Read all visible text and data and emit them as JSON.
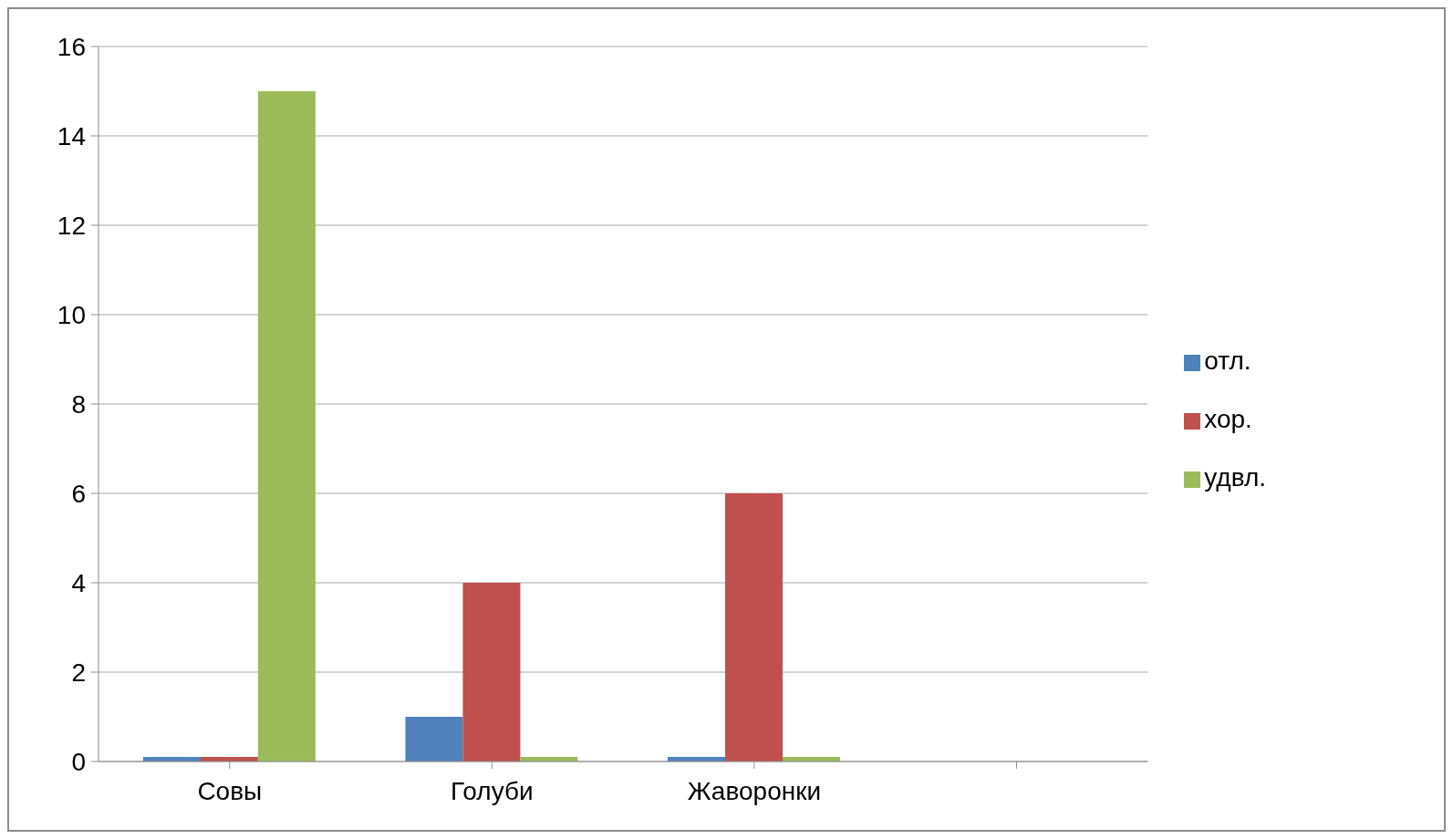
{
  "chart_data": {
    "type": "bar",
    "categories": [
      "Совы",
      "Голуби",
      "Жаворонки",
      null
    ],
    "series": [
      {
        "name": "отл.",
        "color": "#4f81bd",
        "values": [
          0.1,
          1,
          0.1,
          null
        ]
      },
      {
        "name": "хор.",
        "color": "#c0504d",
        "values": [
          0.1,
          4,
          6,
          null
        ]
      },
      {
        "name": "удвл.",
        "color": "#9bbb59",
        "values": [
          15,
          0.1,
          0.1,
          null
        ]
      }
    ],
    "ylim": [
      0,
      16
    ],
    "yticks": [
      0,
      2,
      4,
      6,
      8,
      10,
      12,
      14,
      16
    ],
    "grid": "y",
    "legend": "right"
  }
}
